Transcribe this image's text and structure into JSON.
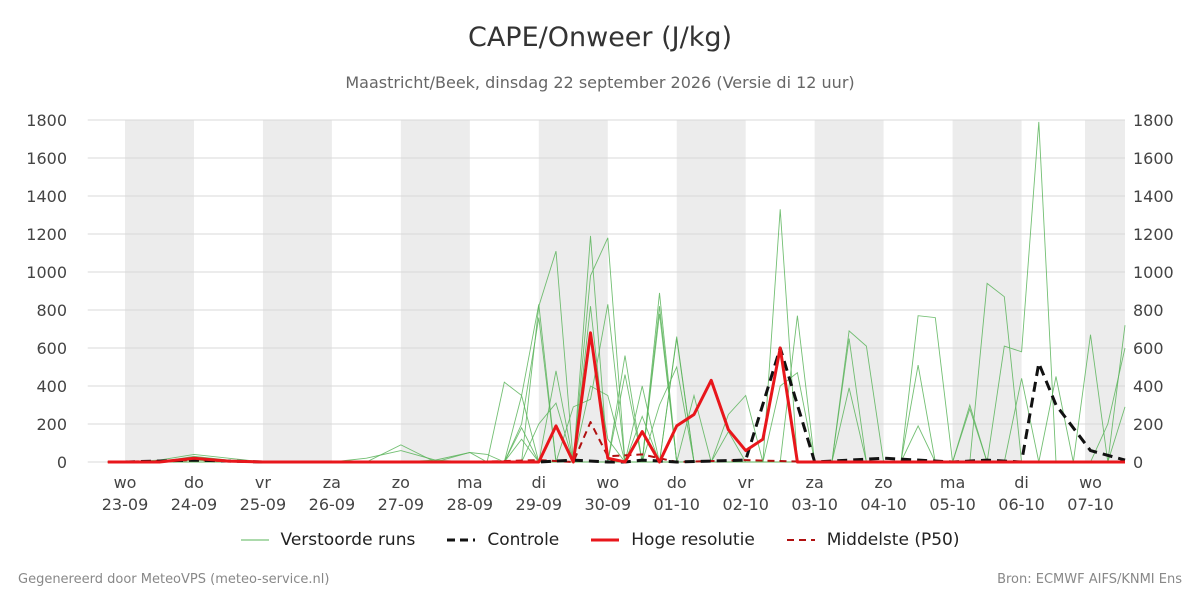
{
  "title": "CAPE/Onweer (J/kg)",
  "subtitle": "Maastricht/Beek, dinsdag 22 september 2026 (Versie di 12 uur)",
  "footer": {
    "left": "Gegenereerd door MeteoVPS (meteo-service.nl)",
    "right": "Bron: ECMWF AIFS/KNMI Ens"
  },
  "legend": [
    {
      "label": "Verstoorde runs",
      "color": "#5ab45a",
      "style": "thin-solid"
    },
    {
      "label": "Controle",
      "color": "#111111",
      "style": "dashed"
    },
    {
      "label": "Hoge resolutie",
      "color": "#e8161b",
      "style": "solid"
    },
    {
      "label": "Middelste (P50)",
      "color": "#b01010",
      "style": "dashed"
    }
  ],
  "chart_data": {
    "type": "line",
    "x_unit": "days since 23-09 00:00",
    "xlim": [
      -0.25,
      14.5
    ],
    "ylim": [
      0,
      1800
    ],
    "y_ticks": [
      0,
      200,
      400,
      600,
      800,
      1000,
      1200,
      1400,
      1600,
      1800
    ],
    "grid": true,
    "legend_position": "bottom",
    "day_labels": [
      {
        "day": "wo",
        "date": "23-09"
      },
      {
        "day": "do",
        "date": "24-09"
      },
      {
        "day": "vr",
        "date": "25-09"
      },
      {
        "day": "za",
        "date": "26-09"
      },
      {
        "day": "zo",
        "date": "27-09"
      },
      {
        "day": "ma",
        "date": "28-09"
      },
      {
        "day": "di",
        "date": "29-09"
      },
      {
        "day": "wo",
        "date": "30-09"
      },
      {
        "day": "do",
        "date": "01-10"
      },
      {
        "day": "vr",
        "date": "02-10"
      },
      {
        "day": "za",
        "date": "03-10"
      },
      {
        "day": "zo",
        "date": "04-10"
      },
      {
        "day": "ma",
        "date": "05-10"
      },
      {
        "day": "di",
        "date": "06-10"
      },
      {
        "day": "wo",
        "date": "07-10"
      }
    ],
    "shaded_days": [
      1,
      3,
      5,
      7,
      9,
      11,
      13
    ],
    "series": [
      {
        "name": "Controle",
        "color": "#111111",
        "dash": true,
        "x": [
          0,
          1,
          2,
          3,
          4,
          5,
          6,
          6.5,
          7,
          7.25,
          7.5,
          8,
          9,
          9.5,
          10,
          10.5,
          11,
          12,
          12.5,
          13,
          13.25,
          13.5,
          14,
          14.5
        ],
        "values": [
          0,
          10,
          0,
          0,
          0,
          0,
          0,
          10,
          0,
          0,
          10,
          0,
          10,
          600,
          0,
          10,
          20,
          0,
          10,
          0,
          520,
          300,
          60,
          10
        ]
      },
      {
        "name": "Hoge resolutie",
        "color": "#e8161b",
        "dash": false,
        "x": [
          -0.25,
          0,
          0.5,
          1,
          1.5,
          2,
          3,
          4,
          5,
          5.5,
          6,
          6.25,
          6.5,
          6.75,
          7,
          7.25,
          7.5,
          7.75,
          8,
          8.25,
          8.5,
          8.75,
          9,
          9.25,
          9.5,
          9.75,
          10,
          11,
          12,
          13,
          14,
          14.5
        ],
        "values": [
          0,
          0,
          0,
          20,
          5,
          0,
          0,
          0,
          0,
          0,
          0,
          190,
          0,
          680,
          20,
          0,
          160,
          0,
          190,
          250,
          430,
          170,
          60,
          120,
          600,
          0,
          0,
          0,
          0,
          0,
          0,
          0
        ]
      },
      {
        "name": "Middelste (P50)",
        "color": "#b01010",
        "dash": true,
        "x": [
          -0.25,
          1,
          2,
          4,
          5,
          6,
          6.5,
          6.75,
          7,
          7.5,
          8,
          9,
          10,
          11,
          12,
          13,
          14,
          14.5
        ],
        "values": [
          0,
          10,
          0,
          0,
          0,
          10,
          0,
          210,
          30,
          40,
          0,
          10,
          0,
          0,
          0,
          0,
          0,
          0
        ]
      }
    ],
    "ensemble": {
      "color": "#5ab45a",
      "x": [
        -0.25,
        0,
        0.5,
        1,
        1.5,
        2,
        2.5,
        3,
        3.5,
        4,
        4.5,
        5,
        5.25,
        5.5,
        5.75,
        6,
        6.25,
        6.5,
        6.75,
        7,
        7.25,
        7.5,
        7.75,
        8,
        8.25,
        8.5,
        8.75,
        9,
        9.25,
        9.5,
        9.75,
        10,
        10.25,
        10.5,
        10.75,
        11,
        11.25,
        11.5,
        11.75,
        12,
        12.25,
        12.5,
        12.75,
        13,
        13.25,
        13.5,
        13.75,
        14,
        14.25,
        14.5
      ],
      "members": [
        [
          0,
          0,
          0,
          30,
          10,
          0,
          0,
          0,
          0,
          0,
          10,
          0,
          0,
          420,
          350,
          830,
          0,
          0,
          1190,
          0,
          460,
          0,
          890,
          0,
          0,
          0,
          0,
          0,
          0,
          1330,
          0,
          0,
          0,
          0,
          0,
          0,
          0,
          0,
          0,
          0,
          0,
          0,
          0,
          0,
          0,
          0,
          0,
          0,
          0,
          0
        ],
        [
          0,
          0,
          10,
          40,
          20,
          0,
          0,
          0,
          20,
          60,
          10,
          50,
          0,
          0,
          0,
          820,
          1110,
          0,
          980,
          1180,
          0,
          0,
          0,
          650,
          0,
          0,
          0,
          0,
          0,
          0,
          0,
          0,
          0,
          690,
          610,
          0,
          0,
          0,
          0,
          0,
          0,
          0,
          0,
          0,
          0,
          0,
          0,
          0,
          0,
          0
        ],
        [
          0,
          0,
          0,
          10,
          0,
          0,
          0,
          0,
          0,
          0,
          0,
          0,
          0,
          0,
          200,
          760,
          0,
          0,
          0,
          0,
          560,
          0,
          820,
          0,
          350,
          0,
          0,
          0,
          0,
          0,
          770,
          0,
          0,
          0,
          0,
          0,
          0,
          770,
          760,
          0,
          0,
          940,
          870,
          0,
          0,
          0,
          0,
          0,
          0,
          0
        ],
        [
          0,
          0,
          0,
          0,
          0,
          0,
          0,
          0,
          0,
          90,
          0,
          50,
          40,
          0,
          180,
          0,
          0,
          290,
          330,
          830,
          0,
          400,
          0,
          660,
          0,
          0,
          0,
          0,
          0,
          0,
          0,
          0,
          0,
          0,
          0,
          0,
          0,
          0,
          0,
          0,
          0,
          0,
          0,
          0,
          0,
          0,
          0,
          0,
          0,
          0
        ],
        [
          0,
          0,
          0,
          0,
          0,
          0,
          0,
          0,
          0,
          0,
          0,
          0,
          0,
          0,
          0,
          0,
          0,
          0,
          0,
          0,
          0,
          0,
          0,
          0,
          0,
          0,
          0,
          0,
          0,
          0,
          0,
          0,
          0,
          0,
          0,
          0,
          0,
          0,
          0,
          0,
          280,
          0,
          610,
          580,
          1790,
          0,
          0,
          670,
          0,
          720
        ],
        [
          0,
          0,
          0,
          20,
          0,
          0,
          0,
          0,
          0,
          0,
          0,
          0,
          0,
          0,
          0,
          0,
          0,
          0,
          0,
          0,
          0,
          0,
          0,
          0,
          0,
          0,
          0,
          0,
          0,
          0,
          0,
          0,
          0,
          0,
          0,
          0,
          0,
          0,
          0,
          0,
          0,
          0,
          0,
          0,
          0,
          450,
          0,
          0,
          200,
          600
        ],
        [
          0,
          0,
          0,
          0,
          0,
          0,
          0,
          0,
          0,
          0,
          0,
          0,
          0,
          0,
          350,
          0,
          480,
          0,
          400,
          350,
          0,
          0,
          780,
          0,
          0,
          0,
          250,
          350,
          0,
          0,
          0,
          0,
          0,
          390,
          0,
          0,
          0,
          510,
          0,
          0,
          0,
          0,
          0,
          0,
          0,
          0,
          0,
          0,
          0,
          0
        ],
        [
          0,
          0,
          0,
          0,
          0,
          0,
          0,
          0,
          0,
          0,
          0,
          0,
          0,
          0,
          0,
          200,
          310,
          0,
          820,
          0,
          0,
          0,
          300,
          500,
          0,
          0,
          0,
          0,
          0,
          400,
          470,
          0,
          0,
          0,
          0,
          0,
          0,
          0,
          0,
          0,
          300,
          0,
          0,
          440,
          0,
          0,
          0,
          0,
          0,
          290
        ],
        [
          0,
          0,
          0,
          0,
          0,
          0,
          0,
          0,
          0,
          0,
          0,
          0,
          0,
          0,
          120,
          0,
          0,
          0,
          650,
          120,
          0,
          240,
          0,
          0,
          0,
          0,
          160,
          0,
          0,
          0,
          0,
          0,
          0,
          650,
          0,
          0,
          0,
          190,
          0,
          0,
          0,
          0,
          0,
          0,
          0,
          0,
          0,
          0,
          0,
          0
        ]
      ]
    }
  }
}
